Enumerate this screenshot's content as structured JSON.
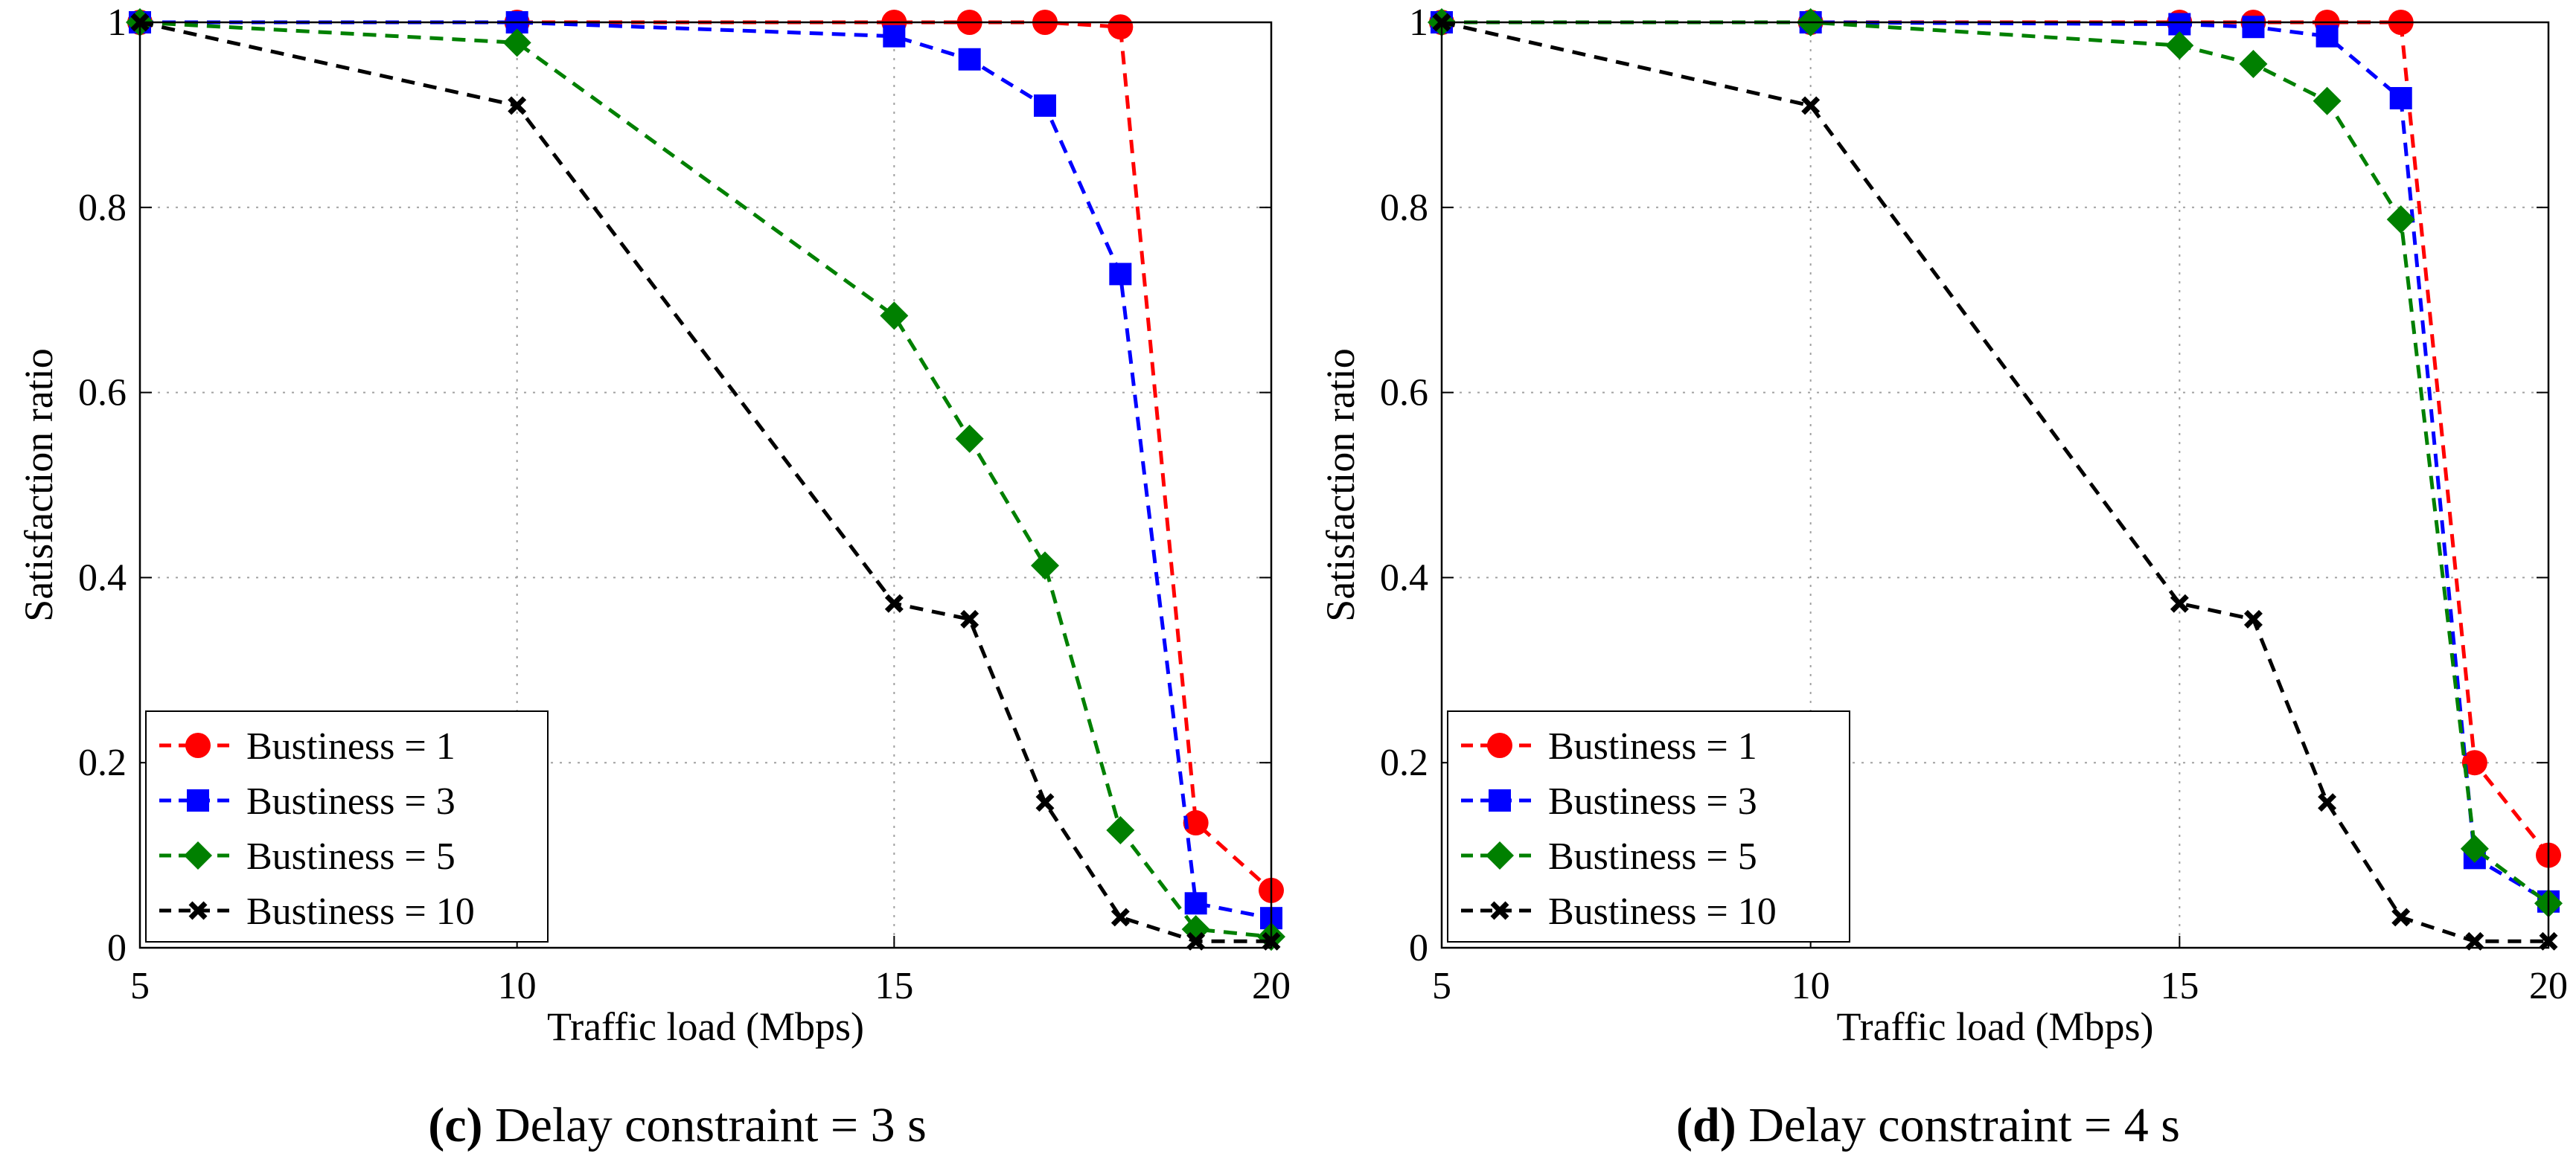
{
  "chart_data": [
    {
      "type": "line",
      "panel_id": "c",
      "caption": {
        "letter": "(c)",
        "text": "Delay constraint = 3 s"
      },
      "xlabel": "Traffic load (Mbps)",
      "ylabel": "Satisfaction ratio",
      "xlim": [
        5,
        20
      ],
      "ylim": [
        0,
        1
      ],
      "xticks": [
        5,
        10,
        15,
        20
      ],
      "xtick_labels": [
        "5",
        "10",
        "15",
        "20"
      ],
      "yticks": [
        0,
        0.2,
        0.4,
        0.6,
        0.8,
        1
      ],
      "ytick_labels": [
        "0",
        "0.2",
        "0.4",
        "0.6",
        "0.8",
        "1"
      ],
      "grid": true,
      "legend": "bottom-left",
      "series": [
        {
          "name": "Bustiness = 1",
          "color": "#ff0000",
          "marker": "circle",
          "x": [
            5,
            10,
            15,
            16,
            17,
            18,
            19,
            20
          ],
          "y": [
            1.0,
            1.0,
            1.0,
            1.0,
            1.0,
            0.995,
            0.135,
            0.062
          ]
        },
        {
          "name": "Bustiness = 3",
          "color": "#0000ff",
          "marker": "square",
          "x": [
            5,
            10,
            15,
            16,
            17,
            18,
            19,
            20
          ],
          "y": [
            1.0,
            1.0,
            0.985,
            0.96,
            0.91,
            0.728,
            0.048,
            0.032
          ]
        },
        {
          "name": "Bustiness = 5",
          "color": "#008000",
          "marker": "diamond",
          "x": [
            5,
            10,
            15,
            16,
            17,
            18,
            19,
            20
          ],
          "y": [
            1.0,
            0.978,
            0.683,
            0.55,
            0.413,
            0.127,
            0.02,
            0.012
          ]
        },
        {
          "name": "Bustiness = 10",
          "color": "#000000",
          "marker": "x",
          "x": [
            5,
            10,
            15,
            16,
            17,
            18,
            19,
            20
          ],
          "y": [
            1.0,
            0.91,
            0.372,
            0.355,
            0.157,
            0.033,
            0.007,
            0.007
          ]
        }
      ]
    },
    {
      "type": "line",
      "panel_id": "d",
      "caption": {
        "letter": "(d)",
        "text": "Delay constraint = 4 s"
      },
      "xlabel": "Traffic load (Mbps)",
      "ylabel": "Satisfaction ratio",
      "xlim": [
        5,
        20
      ],
      "ylim": [
        0,
        1
      ],
      "xticks": [
        5,
        10,
        15,
        20
      ],
      "xtick_labels": [
        "5",
        "10",
        "15",
        "20"
      ],
      "yticks": [
        0,
        0.2,
        0.4,
        0.6,
        0.8,
        1
      ],
      "ytick_labels": [
        "0",
        "0.2",
        "0.4",
        "0.6",
        "0.8",
        "1"
      ],
      "grid": true,
      "legend": "bottom-left",
      "series": [
        {
          "name": "Bustiness = 1",
          "color": "#ff0000",
          "marker": "circle",
          "x": [
            5,
            10,
            15,
            16,
            17,
            18,
            19,
            20
          ],
          "y": [
            1.0,
            1.0,
            1.0,
            1.0,
            1.0,
            1.0,
            0.2,
            0.1
          ]
        },
        {
          "name": "Bustiness = 3",
          "color": "#0000ff",
          "marker": "square",
          "x": [
            5,
            10,
            15,
            16,
            17,
            18,
            19,
            20
          ],
          "y": [
            1.0,
            1.0,
            0.998,
            0.995,
            0.985,
            0.918,
            0.097,
            0.05
          ]
        },
        {
          "name": "Bustiness = 5",
          "color": "#008000",
          "marker": "diamond",
          "x": [
            5,
            10,
            15,
            16,
            17,
            18,
            19,
            20
          ],
          "y": [
            1.0,
            1.0,
            0.975,
            0.955,
            0.915,
            0.787,
            0.107,
            0.048
          ]
        },
        {
          "name": "Bustiness = 10",
          "color": "#000000",
          "marker": "x",
          "x": [
            5,
            10,
            15,
            16,
            17,
            18,
            19,
            20
          ],
          "y": [
            1.0,
            0.91,
            0.372,
            0.355,
            0.157,
            0.033,
            0.007,
            0.007
          ]
        }
      ]
    }
  ]
}
